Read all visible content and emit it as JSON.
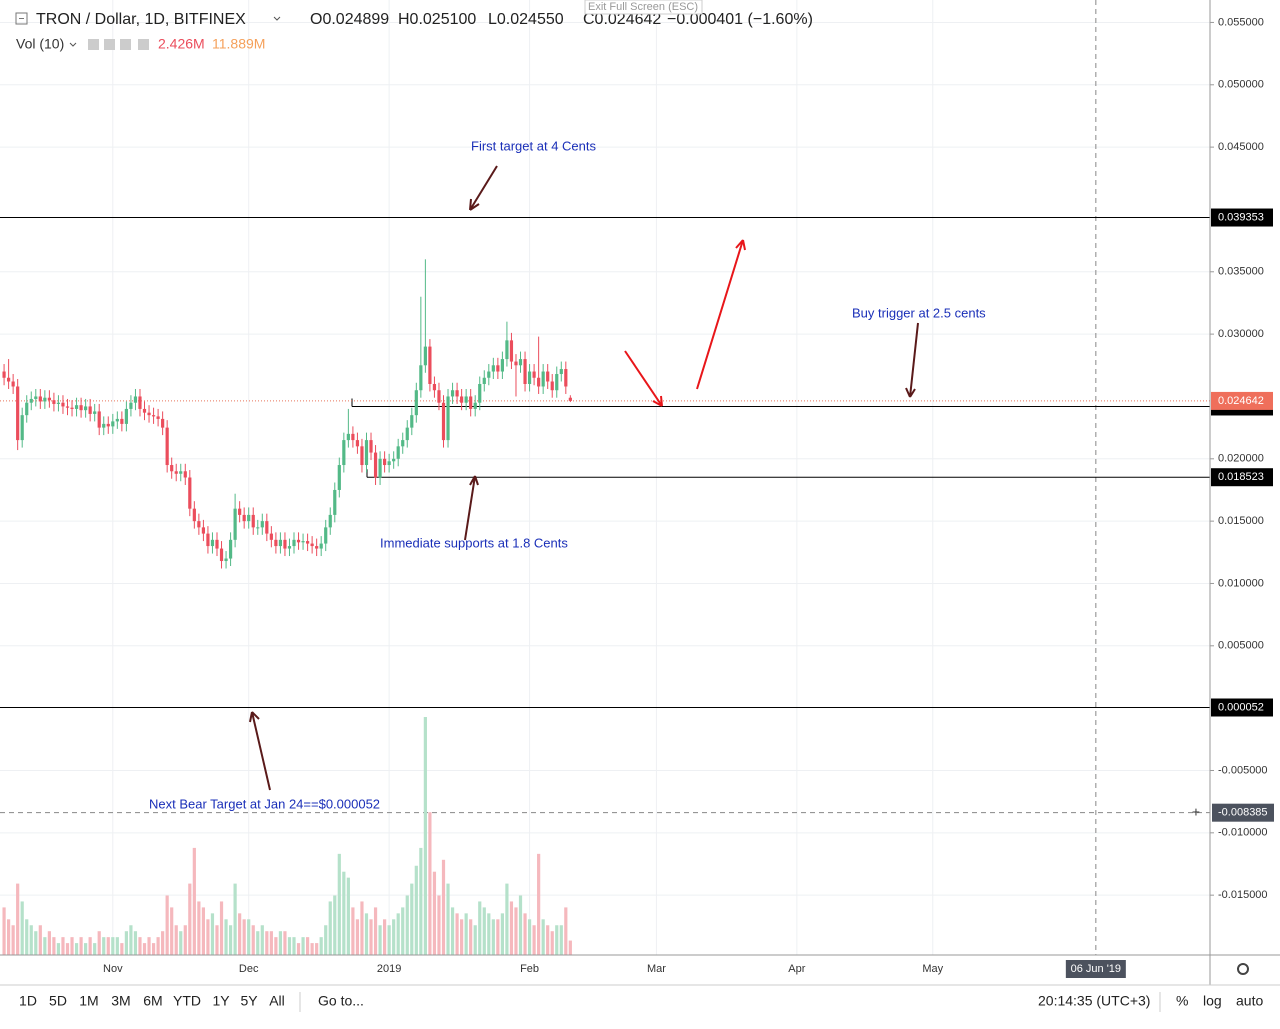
{
  "header": {
    "symbol": "TRON / Dollar, 1D, BITFINEX",
    "open": "O0.024899",
    "high": "H0.025100",
    "low": "L0.024550",
    "close": "C0.024642",
    "change": "−0.000401 (−1.60%)",
    "vol_label": "Vol (10)",
    "vol_last": "2.426M",
    "vol_ma": "11.889M",
    "exit": "Exit Full Screen (ESC)"
  },
  "annotations": [
    "First target at 4 Cents",
    "Buy trigger at 2.5 cents",
    "Immediate supports at 1.8 Cents",
    "Next Bear Target at Jan 24==$0.000052"
  ],
  "toolbar": {
    "ranges": [
      "1D",
      "5D",
      "1M",
      "3M",
      "6M",
      "YTD",
      "1Y",
      "5Y",
      "All"
    ],
    "goto": "Go to...",
    "time": "20:14:35 (UTC+3)",
    "percent": "%",
    "log": "log",
    "auto": "auto"
  },
  "chart_data": {
    "type": "candlestick",
    "up_color": "#53b987",
    "down_color": "#eb4d5c",
    "vol_up_color": "#b5e1ca",
    "vol_down_color": "#f5b8bd",
    "open": [
      0.027,
      0.0265,
      0.0262,
      0.0258,
      0.0215,
      0.0235,
      0.0245,
      0.0248,
      0.025,
      0.0246,
      0.0249,
      0.0247,
      0.0244,
      0.0245,
      0.0242,
      0.0241,
      0.024,
      0.0243,
      0.0239,
      0.0242,
      0.0236,
      0.0238,
      0.0225,
      0.0228,
      0.0226,
      0.023,
      0.0232,
      0.0228,
      0.024,
      0.0245,
      0.025,
      0.024,
      0.0237,
      0.0235,
      0.0234,
      0.0232,
      0.0225,
      0.0195,
      0.019,
      0.0188,
      0.019,
      0.0185,
      0.016,
      0.015,
      0.0145,
      0.014,
      0.013,
      0.0135,
      0.0128,
      0.0118,
      0.012,
      0.0135,
      0.016,
      0.0155,
      0.015,
      0.0155,
      0.0145,
      0.0145,
      0.015,
      0.014,
      0.0135,
      0.013,
      0.0135,
      0.0128,
      0.013,
      0.0135,
      0.0133,
      0.0134,
      0.0132,
      0.013,
      0.0128,
      0.0132,
      0.0145,
      0.0155,
      0.0175,
      0.0195,
      0.0215,
      0.022,
      0.0215,
      0.021,
      0.0195,
      0.0215,
      0.0205,
      0.0185,
      0.02,
      0.0195,
      0.0198,
      0.02,
      0.021,
      0.0215,
      0.0225,
      0.0235,
      0.0255,
      0.0275,
      0.029,
      0.026,
      0.0255,
      0.0245,
      0.0215,
      0.025,
      0.0255,
      0.025,
      0.0245,
      0.025,
      0.024,
      0.0245,
      0.026,
      0.0265,
      0.027,
      0.0275,
      0.027,
      0.028,
      0.0295,
      0.0278,
      0.0275,
      0.028,
      0.026,
      0.027,
      0.0265,
      0.0258,
      0.027,
      0.0262,
      0.0255,
      0.0268,
      0.0272,
      0.024899
    ],
    "high": [
      0.0276,
      0.028,
      0.0268,
      0.0264,
      0.0241,
      0.0251,
      0.0254,
      0.0256,
      0.0256,
      0.0255,
      0.0255,
      0.0253,
      0.0251,
      0.0251,
      0.0248,
      0.0247,
      0.0249,
      0.0249,
      0.0248,
      0.0248,
      0.0244,
      0.0244,
      0.0234,
      0.0234,
      0.0236,
      0.0238,
      0.0238,
      0.0246,
      0.0251,
      0.0256,
      0.0256,
      0.0246,
      0.0243,
      0.0241,
      0.024,
      0.0238,
      0.0231,
      0.0201,
      0.0196,
      0.0196,
      0.0196,
      0.0191,
      0.0166,
      0.0156,
      0.0151,
      0.0146,
      0.0141,
      0.0141,
      0.0134,
      0.0126,
      0.0141,
      0.0172,
      0.0166,
      0.0161,
      0.0161,
      0.0161,
      0.0151,
      0.0156,
      0.0156,
      0.0146,
      0.0141,
      0.0141,
      0.0141,
      0.0136,
      0.0141,
      0.0141,
      0.014,
      0.014,
      0.0138,
      0.0136,
      0.0138,
      0.0151,
      0.0161,
      0.0181,
      0.0201,
      0.0221,
      0.024,
      0.0226,
      0.0221,
      0.0216,
      0.0221,
      0.0221,
      0.0211,
      0.0206,
      0.0206,
      0.0204,
      0.0206,
      0.0216,
      0.0221,
      0.0231,
      0.0241,
      0.0261,
      0.033,
      0.036,
      0.0296,
      0.0266,
      0.0261,
      0.0251,
      0.0256,
      0.0261,
      0.0261,
      0.0256,
      0.0256,
      0.0256,
      0.0251,
      0.0266,
      0.0271,
      0.0276,
      0.0281,
      0.0281,
      0.0286,
      0.031,
      0.0301,
      0.0284,
      0.0286,
      0.0286,
      0.0276,
      0.0276,
      0.0298,
      0.0276,
      0.0276,
      0.0268,
      0.0274,
      0.0278,
      0.0278,
      0.0251
    ],
    "low": [
      0.0259,
      0.0256,
      0.0252,
      0.0207,
      0.0209,
      0.0229,
      0.0239,
      0.0242,
      0.024,
      0.024,
      0.0241,
      0.0238,
      0.0238,
      0.0236,
      0.0235,
      0.0234,
      0.0234,
      0.0233,
      0.0233,
      0.023,
      0.023,
      0.0219,
      0.0219,
      0.022,
      0.022,
      0.0224,
      0.0222,
      0.0222,
      0.0234,
      0.0239,
      0.0234,
      0.0231,
      0.0229,
      0.0228,
      0.0226,
      0.0219,
      0.0189,
      0.0184,
      0.0182,
      0.0182,
      0.0179,
      0.0154,
      0.0144,
      0.0139,
      0.0134,
      0.0124,
      0.0124,
      0.0122,
      0.0112,
      0.0112,
      0.0114,
      0.0129,
      0.0149,
      0.0144,
      0.0144,
      0.0139,
      0.0139,
      0.0139,
      0.0134,
      0.0129,
      0.0124,
      0.0124,
      0.0122,
      0.0122,
      0.0124,
      0.0127,
      0.0127,
      0.0126,
      0.0124,
      0.0122,
      0.0122,
      0.0126,
      0.0139,
      0.0149,
      0.0169,
      0.0189,
      0.0209,
      0.0209,
      0.0204,
      0.0189,
      0.0189,
      0.0199,
      0.0179,
      0.0179,
      0.0189,
      0.0189,
      0.0192,
      0.0194,
      0.0204,
      0.0209,
      0.0219,
      0.0229,
      0.0249,
      0.0269,
      0.0254,
      0.0249,
      0.0239,
      0.0209,
      0.0209,
      0.0244,
      0.0244,
      0.0239,
      0.0239,
      0.0234,
      0.0234,
      0.0239,
      0.0254,
      0.0259,
      0.0264,
      0.0264,
      0.0264,
      0.0274,
      0.0272,
      0.025,
      0.0269,
      0.0254,
      0.0254,
      0.0259,
      0.0252,
      0.0252,
      0.0256,
      0.0249,
      0.0249,
      0.0262,
      0.0252,
      0.02455
    ],
    "close": [
      0.0265,
      0.0262,
      0.0258,
      0.0215,
      0.0235,
      0.0245,
      0.0248,
      0.025,
      0.0246,
      0.0249,
      0.0247,
      0.0244,
      0.0245,
      0.0242,
      0.0241,
      0.024,
      0.0243,
      0.0239,
      0.0242,
      0.0236,
      0.0238,
      0.0225,
      0.0228,
      0.0226,
      0.023,
      0.0232,
      0.0228,
      0.024,
      0.0245,
      0.025,
      0.024,
      0.0237,
      0.0235,
      0.0234,
      0.0232,
      0.0225,
      0.0195,
      0.019,
      0.0188,
      0.019,
      0.0185,
      0.016,
      0.015,
      0.0145,
      0.014,
      0.013,
      0.0135,
      0.0128,
      0.0118,
      0.012,
      0.0135,
      0.016,
      0.0155,
      0.015,
      0.0155,
      0.0145,
      0.0145,
      0.015,
      0.014,
      0.0135,
      0.013,
      0.0135,
      0.0128,
      0.013,
      0.0135,
      0.0133,
      0.0134,
      0.0132,
      0.013,
      0.0128,
      0.0132,
      0.0145,
      0.0155,
      0.0175,
      0.0195,
      0.0215,
      0.022,
      0.0215,
      0.021,
      0.0195,
      0.0215,
      0.0205,
      0.0185,
      0.02,
      0.0195,
      0.0198,
      0.02,
      0.021,
      0.0215,
      0.0225,
      0.0235,
      0.0255,
      0.0275,
      0.029,
      0.026,
      0.0255,
      0.0245,
      0.0215,
      0.025,
      0.0255,
      0.025,
      0.0245,
      0.025,
      0.024,
      0.0245,
      0.026,
      0.0265,
      0.027,
      0.0275,
      0.027,
      0.028,
      0.0295,
      0.0278,
      0.0275,
      0.028,
      0.026,
      0.027,
      0.0265,
      0.0258,
      0.027,
      0.0262,
      0.0255,
      0.0268,
      0.0272,
      0.0258,
      0.024642
    ],
    "volume": [
      8,
      6,
      5,
      12,
      9,
      6,
      5,
      4,
      5,
      3,
      4,
      3,
      2,
      3,
      2,
      3,
      2,
      3,
      2,
      3,
      2,
      4,
      3,
      3,
      3,
      3,
      2,
      4,
      5,
      4,
      3,
      2,
      3,
      2,
      3,
      4,
      10,
      8,
      5,
      4,
      5,
      12,
      18,
      9,
      8,
      6,
      7,
      5,
      9,
      6,
      5,
      12,
      7,
      6,
      6,
      5,
      4,
      5,
      4,
      4,
      3,
      4,
      4,
      3,
      3,
      2,
      3,
      3,
      2,
      2,
      3,
      5,
      9,
      10,
      17,
      14,
      13,
      8,
      6,
      9,
      7,
      6,
      8,
      5,
      6,
      5,
      6,
      7,
      8,
      10,
      12,
      15,
      18,
      40,
      24,
      14,
      10,
      16,
      12,
      8,
      7,
      6,
      7,
      6,
      5,
      9,
      8,
      7,
      6,
      6,
      7,
      12,
      9,
      8,
      10,
      7,
      6,
      5,
      17,
      6,
      5,
      4,
      5,
      5,
      8,
      2.426
    ],
    "xlim": [
      -0.9,
      266.2
    ],
    "ylim": [
      -0.0198,
      0.0568
    ],
    "xticks": [
      {
        "value": 24,
        "label": "Nov"
      },
      {
        "value": 54,
        "label": "Dec"
      },
      {
        "value": 85,
        "label": "2019"
      },
      {
        "value": 116,
        "label": "Feb"
      },
      {
        "value": 144,
        "label": "Mar"
      },
      {
        "value": 175,
        "label": "Apr"
      },
      {
        "value": 205,
        "label": "May"
      }
    ],
    "crosshair_x": {
      "value": 241,
      "label": "06 Jun '19"
    },
    "yticks": [
      {
        "value": 0.055,
        "label": "0.055000"
      },
      {
        "value": 0.05,
        "label": "0.050000"
      },
      {
        "value": 0.045,
        "label": "0.045000"
      },
      {
        "value": 0.035,
        "label": "0.035000"
      },
      {
        "value": 0.03,
        "label": "0.030000"
      },
      {
        "value": 0.02,
        "label": "0.020000"
      },
      {
        "value": 0.015,
        "label": "0.015000"
      },
      {
        "value": 0.01,
        "label": "0.010000"
      },
      {
        "value": 0.005,
        "label": "0.005000"
      },
      {
        "value": -0.005,
        "label": "-0.005000"
      },
      {
        "value": -0.01,
        "label": "-0.010000"
      },
      {
        "value": -0.015,
        "label": "-0.015000"
      }
    ],
    "levels": [
      0.039353,
      0.024197,
      0.018523,
      5.2e-05
    ],
    "last_price": 0.024642,
    "crosshair_y": -0.008385
  }
}
